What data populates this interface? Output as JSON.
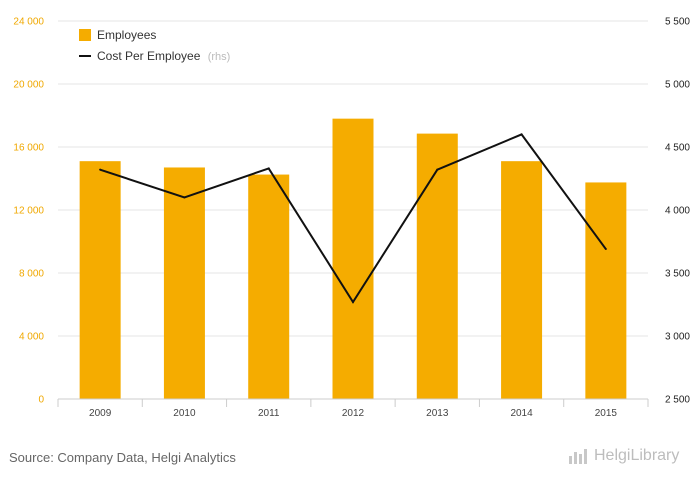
{
  "chart_data": {
    "type": "bar",
    "categories": [
      "2009",
      "2010",
      "2011",
      "2012",
      "2013",
      "2014",
      "2015"
    ],
    "series": [
      {
        "name": "Employees",
        "type": "bar",
        "axis": "left",
        "color": "#f5ac00",
        "values": [
          15100,
          14700,
          14250,
          17800,
          16850,
          15100,
          13750
        ]
      },
      {
        "name": "Cost Per Employee",
        "type": "line",
        "axis": "right",
        "color": "#111111",
        "values": [
          4320,
          4100,
          4330,
          3270,
          4320,
          4600,
          3690
        ]
      }
    ],
    "y_left": {
      "range": [
        0,
        24000
      ],
      "ticks": [
        0,
        4000,
        8000,
        12000,
        16000,
        20000,
        24000
      ],
      "tick_labels": [
        "0",
        "4 000",
        "8 000",
        "12 000",
        "16 000",
        "20 000",
        "24 000"
      ],
      "color": "#f0a800"
    },
    "y_right": {
      "range": [
        2500,
        5500
      ],
      "ticks": [
        2500,
        3000,
        3500,
        4000,
        4500,
        5000,
        5500
      ],
      "tick_labels": [
        "2 500",
        "3 000",
        "3 500",
        "4 000",
        "4 500",
        "5 000",
        "5 500"
      ]
    },
    "legend": {
      "position": "top-left",
      "items": [
        {
          "label": "Employees",
          "note": "",
          "symbol": "square",
          "color": "#f5ac00"
        },
        {
          "label": "Cost Per Employee",
          "note": "(rhs)",
          "symbol": "line",
          "color": "#111111"
        }
      ]
    },
    "grid": true
  },
  "footer": {
    "source": "Source: Company Data, Helgi Analytics",
    "logo_text": "HelgiLibrary",
    "logo_icon": "bar-chart-logo-icon"
  }
}
